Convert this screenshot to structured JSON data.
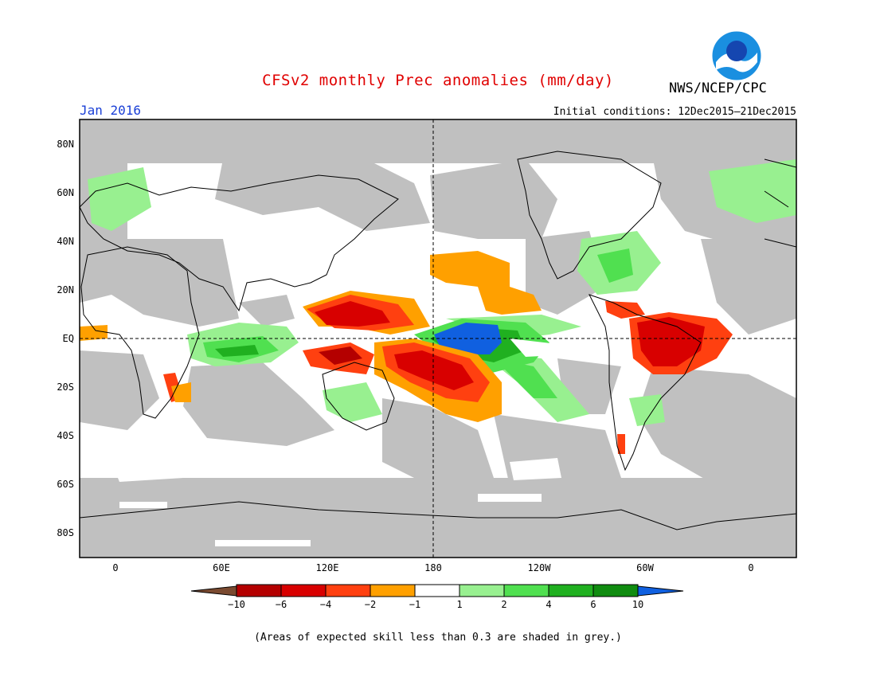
{
  "title": "CFSv2 monthly Prec anomalies (mm/day)",
  "month": "Jan 2016",
  "initial_conditions": "Initial conditions: 12Dec2015–21Dec2015",
  "organization": "NWS/NCEP/CPC",
  "logo_icon": "noaa-logo-icon",
  "footnote": "(Areas of expected skill less than 0.3 are shaded in grey.)",
  "lat_labels": [
    "80N",
    "60N",
    "40N",
    "20N",
    "EQ",
    "20S",
    "40S",
    "60S",
    "80S"
  ],
  "lon_labels": [
    "0",
    "60E",
    "120E",
    "180",
    "120W",
    "60W",
    "0"
  ],
  "colorbar": {
    "ticks": [
      "−10",
      "−6",
      "−4",
      "−2",
      "−1",
      "1",
      "2",
      "4",
      "6",
      "10"
    ],
    "colors": [
      "#7a4a30",
      "#b40000",
      "#d80000",
      "#ff4010",
      "#ffa000",
      "#ffffff",
      "#98f090",
      "#50e050",
      "#20b020",
      "#108c10",
      "#1060e0"
    ]
  },
  "colors": {
    "skill_grey": "#c0c0c0",
    "title_red": "#e00000",
    "month_blue": "#1a3fd6"
  }
}
